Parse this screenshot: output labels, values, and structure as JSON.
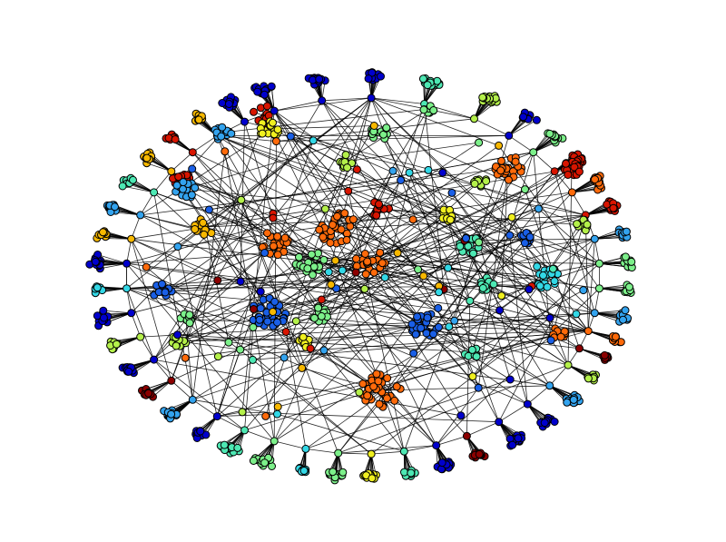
{
  "figure": {
    "type": "network-graph",
    "description_visible_text": "",
    "palette": {
      "dark-blue": "#0000cd",
      "blue": "#1a5fe6",
      "sky": "#33a3ee",
      "cyan": "#33d8e6",
      "aqua": "#4de8b3",
      "mint": "#7cf08a",
      "lime": "#b4f04a",
      "yellow": "#f0f020",
      "gold": "#f7b800",
      "orange": "#ff6a0a",
      "red": "#d81500",
      "dark-red": "#8c0000"
    },
    "edge_color": "#000000",
    "node_outline": "#000000",
    "background": "#ffffff"
  }
}
